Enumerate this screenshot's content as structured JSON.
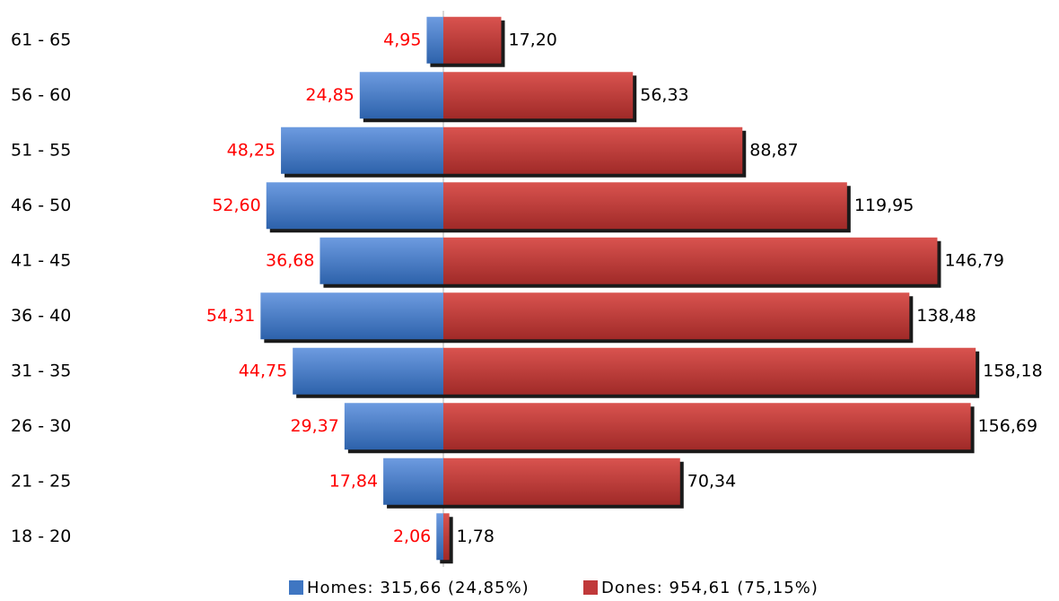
{
  "chart_data": {
    "type": "bar",
    "orientation": "horizontal",
    "layout": "diverging",
    "categories": [
      "61 - 65",
      "56 - 60",
      "51 - 55",
      "46 - 50",
      "41 - 45",
      "36 - 40",
      "31 - 35",
      "26 - 30",
      "21 - 25",
      "18 - 20"
    ],
    "series": [
      {
        "name": "Homes: 315,66 (24,85%)",
        "color": "#3f76c2",
        "label_color": "#ff0000",
        "values": [
          4.95,
          24.85,
          48.25,
          52.6,
          36.68,
          54.31,
          44.75,
          29.37,
          17.84,
          2.06
        ],
        "value_labels": [
          "4,95",
          "24,85",
          "48,25",
          "52,60",
          "36,68",
          "54,31",
          "44,75",
          "29,37",
          "17,84",
          "2,06"
        ]
      },
      {
        "name": "Dones: 954,61 (75,15%)",
        "color": "#c0393a",
        "label_color": "#000000",
        "values": [
          17.2,
          56.33,
          88.87,
          119.95,
          146.79,
          138.48,
          158.18,
          156.69,
          70.34,
          1.78
        ],
        "value_labels": [
          "17,20",
          "56,33",
          "88,87",
          "119,95",
          "146,79",
          "138,48",
          "158,18",
          "156,69",
          "70,34",
          "1,78"
        ]
      }
    ]
  }
}
